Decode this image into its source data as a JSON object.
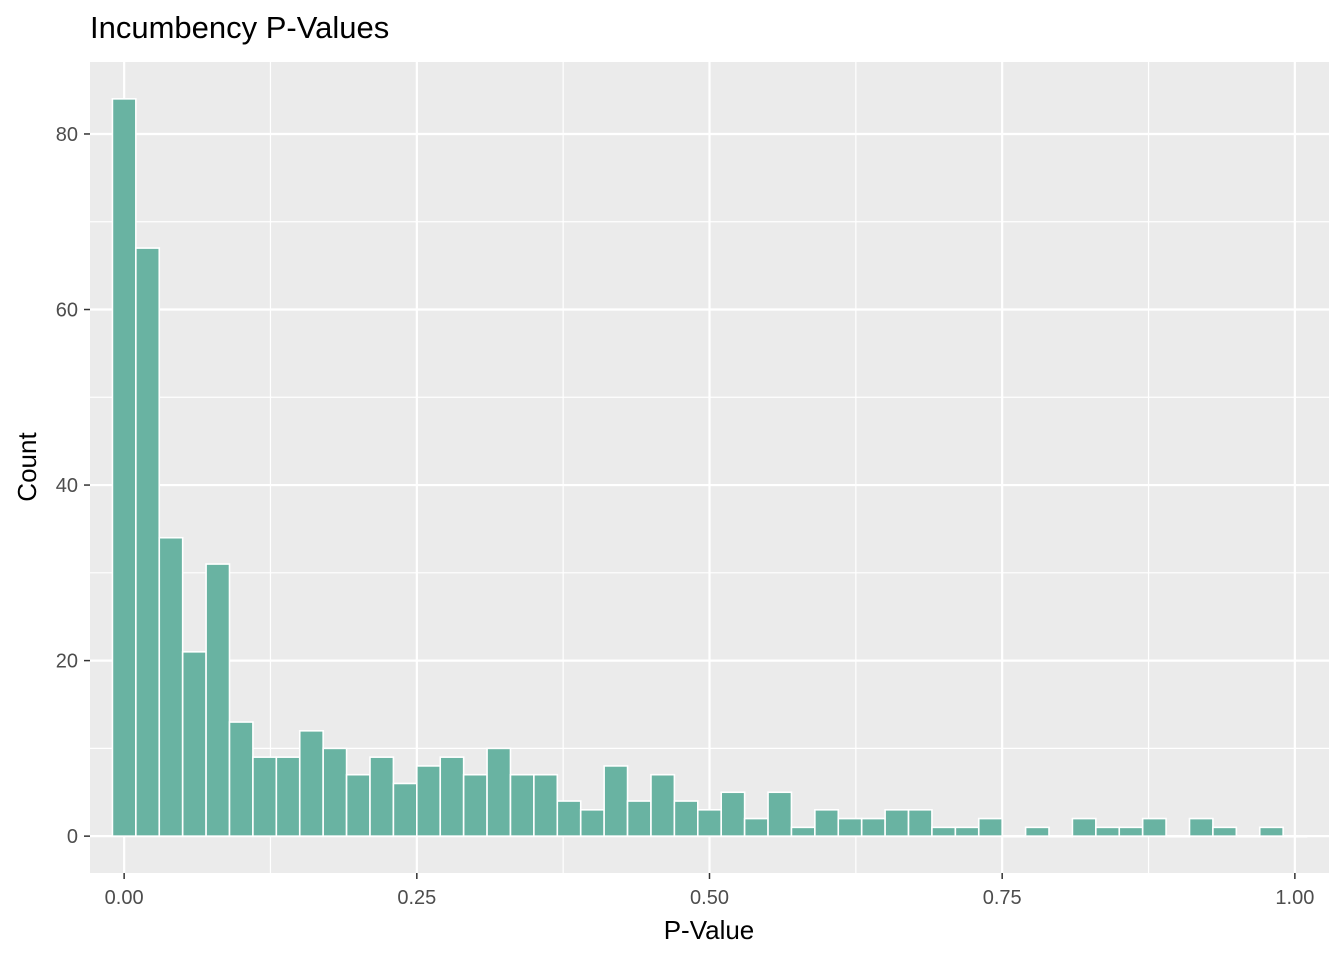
{
  "chart_data": {
    "type": "bar",
    "title": "Incumbency P-Values",
    "xlabel": "P-Value",
    "ylabel": "Count",
    "xlim": [
      -0.02916,
      1.02916
    ],
    "ylim": [
      -4.2,
      88.2
    ],
    "x_ticks": [
      0.0,
      0.25,
      0.5,
      0.75,
      1.0
    ],
    "x_tick_labels": [
      "0.00",
      "0.25",
      "0.50",
      "0.75",
      "1.00"
    ],
    "y_ticks": [
      0,
      20,
      40,
      60,
      80
    ],
    "y_tick_labels": [
      "0",
      "20",
      "40",
      "60",
      "80"
    ],
    "bin_width": 0.02,
    "bin_centers": [
      0.0,
      0.02,
      0.04,
      0.06,
      0.08,
      0.1,
      0.12,
      0.14,
      0.16,
      0.18,
      0.2,
      0.22,
      0.24,
      0.26,
      0.28,
      0.3,
      0.32,
      0.34,
      0.36,
      0.38,
      0.4,
      0.42,
      0.44,
      0.46,
      0.48,
      0.5,
      0.52,
      0.54,
      0.56,
      0.58,
      0.6,
      0.62,
      0.64,
      0.66,
      0.68,
      0.7,
      0.72,
      0.74,
      0.76,
      0.78,
      0.8,
      0.82,
      0.84,
      0.86,
      0.88,
      0.9,
      0.92,
      0.94,
      0.96,
      0.98,
      1.0
    ],
    "values": [
      84,
      67,
      34,
      21,
      31,
      13,
      9,
      9,
      12,
      10,
      7,
      9,
      6,
      8,
      9,
      7,
      10,
      7,
      7,
      4,
      3,
      8,
      4,
      7,
      4,
      3,
      5,
      2,
      5,
      1,
      3,
      2,
      2,
      3,
      3,
      1,
      1,
      2,
      0,
      1,
      0,
      2,
      1,
      1,
      2,
      0,
      2,
      1,
      0,
      1,
      0
    ],
    "grid": true,
    "colors": {
      "bar_fill": "#69b3a2",
      "bar_outline": "#ffffff",
      "panel_background": "#ebebeb",
      "grid_major": "#ffffff",
      "tick_text": "#4d4d4d",
      "title_text": "#000000"
    }
  }
}
